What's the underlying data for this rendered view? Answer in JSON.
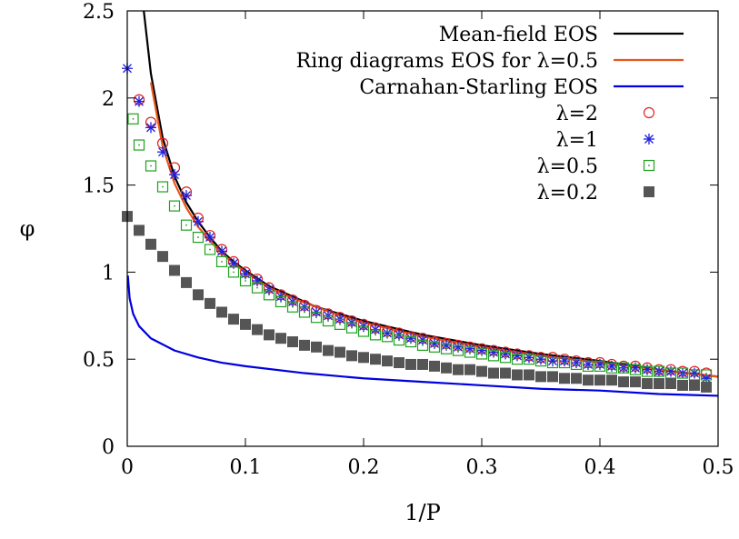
{
  "chart_data": {
    "type": "line",
    "title": "",
    "xlabel": "1/P",
    "ylabel": "φ",
    "xlim": [
      0,
      0.5
    ],
    "ylim": [
      0,
      2.5
    ],
    "grid": false,
    "legend_position": "top-right",
    "x_ticks": [
      "0",
      "0.1",
      "0.2",
      "0.3",
      "0.4",
      "0.5"
    ],
    "y_ticks": [
      "0",
      "0.5",
      "1",
      "1.5",
      "2",
      "2.5"
    ],
    "series": [
      {
        "name": "Mean-field EOS",
        "style": "line",
        "color": "#000000",
        "x": [
          0.014,
          0.02,
          0.03,
          0.04,
          0.05,
          0.06,
          0.07,
          0.08,
          0.09,
          0.1,
          0.12,
          0.14,
          0.16,
          0.18,
          0.2,
          0.25,
          0.3,
          0.35,
          0.4,
          0.45,
          0.5
        ],
        "y": [
          2.5,
          2.14,
          1.77,
          1.55,
          1.4,
          1.29,
          1.2,
          1.12,
          1.06,
          1.01,
          0.92,
          0.86,
          0.8,
          0.76,
          0.72,
          0.64,
          0.58,
          0.53,
          0.49,
          0.44,
          0.4
        ]
      },
      {
        "name": "Ring diagrams EOS for λ=0.5",
        "style": "line",
        "color": "#e8561d",
        "x": [
          0.02,
          0.03,
          0.04,
          0.05,
          0.06,
          0.07,
          0.08,
          0.09,
          0.1,
          0.12,
          0.14,
          0.16,
          0.18,
          0.2,
          0.25,
          0.3,
          0.35,
          0.4,
          0.45,
          0.5
        ],
        "y": [
          2.09,
          1.72,
          1.51,
          1.37,
          1.26,
          1.18,
          1.11,
          1.05,
          1.0,
          0.91,
          0.85,
          0.8,
          0.75,
          0.71,
          0.63,
          0.57,
          0.52,
          0.48,
          0.44,
          0.4
        ]
      },
      {
        "name": "Carnahan-Starling EOS",
        "style": "line",
        "color": "#0000e0",
        "x": [
          0.0005,
          0.002,
          0.005,
          0.01,
          0.02,
          0.04,
          0.06,
          0.08,
          0.1,
          0.15,
          0.2,
          0.25,
          0.3,
          0.35,
          0.4,
          0.45,
          0.5
        ],
        "y": [
          0.98,
          0.85,
          0.76,
          0.69,
          0.62,
          0.55,
          0.51,
          0.48,
          0.46,
          0.42,
          0.39,
          0.37,
          0.35,
          0.33,
          0.32,
          0.3,
          0.29
        ],
        "is_scatter": false
      },
      {
        "name": "λ=2",
        "style": "circle",
        "color": "#e02020",
        "x": [
          0.01,
          0.02,
          0.03,
          0.04,
          0.05,
          0.06,
          0.07,
          0.08,
          0.09,
          0.1,
          0.11,
          0.12,
          0.13,
          0.14,
          0.15,
          0.16,
          0.17,
          0.18,
          0.19,
          0.2,
          0.21,
          0.22,
          0.23,
          0.24,
          0.25,
          0.26,
          0.27,
          0.28,
          0.29,
          0.3,
          0.31,
          0.32,
          0.33,
          0.34,
          0.35,
          0.36,
          0.37,
          0.38,
          0.39,
          0.4,
          0.41,
          0.42,
          0.43,
          0.44,
          0.45,
          0.46,
          0.47,
          0.48,
          0.49
        ],
        "y": [
          1.99,
          1.86,
          1.74,
          1.6,
          1.46,
          1.31,
          1.21,
          1.13,
          1.06,
          1.0,
          0.96,
          0.91,
          0.87,
          0.84,
          0.81,
          0.78,
          0.76,
          0.74,
          0.72,
          0.7,
          0.68,
          0.66,
          0.65,
          0.63,
          0.62,
          0.6,
          0.59,
          0.58,
          0.57,
          0.56,
          0.55,
          0.54,
          0.53,
          0.52,
          0.51,
          0.51,
          0.5,
          0.49,
          0.48,
          0.48,
          0.47,
          0.46,
          0.46,
          0.45,
          0.44,
          0.44,
          0.43,
          0.43,
          0.42
        ]
      },
      {
        "name": "λ=1",
        "style": "star",
        "color": "#2020e0",
        "x": [
          0.0,
          0.01,
          0.02,
          0.03,
          0.04,
          0.05,
          0.06,
          0.07,
          0.08,
          0.09,
          0.1,
          0.11,
          0.12,
          0.13,
          0.14,
          0.15,
          0.16,
          0.17,
          0.18,
          0.19,
          0.2,
          0.21,
          0.22,
          0.23,
          0.24,
          0.25,
          0.26,
          0.27,
          0.28,
          0.29,
          0.3,
          0.31,
          0.32,
          0.33,
          0.34,
          0.35,
          0.36,
          0.37,
          0.38,
          0.39,
          0.4,
          0.41,
          0.42,
          0.43,
          0.44,
          0.45,
          0.46,
          0.47,
          0.48,
          0.49
        ],
        "y": [
          2.17,
          1.98,
          1.83,
          1.69,
          1.56,
          1.44,
          1.29,
          1.2,
          1.12,
          1.05,
          0.99,
          0.95,
          0.9,
          0.86,
          0.83,
          0.8,
          0.77,
          0.75,
          0.73,
          0.71,
          0.69,
          0.67,
          0.65,
          0.64,
          0.62,
          0.61,
          0.59,
          0.58,
          0.57,
          0.56,
          0.55,
          0.54,
          0.53,
          0.52,
          0.51,
          0.5,
          0.49,
          0.49,
          0.48,
          0.47,
          0.47,
          0.46,
          0.45,
          0.45,
          0.44,
          0.43,
          0.43,
          0.42,
          0.42,
          0.39
        ]
      },
      {
        "name": "λ=0.5",
        "style": "boxdot",
        "color": "#20a020",
        "x": [
          0.005,
          0.01,
          0.02,
          0.03,
          0.04,
          0.05,
          0.06,
          0.07,
          0.08,
          0.09,
          0.1,
          0.11,
          0.12,
          0.13,
          0.14,
          0.15,
          0.16,
          0.17,
          0.18,
          0.19,
          0.2,
          0.21,
          0.22,
          0.23,
          0.24,
          0.25,
          0.26,
          0.27,
          0.28,
          0.29,
          0.3,
          0.31,
          0.32,
          0.33,
          0.34,
          0.35,
          0.36,
          0.37,
          0.38,
          0.39,
          0.4,
          0.41,
          0.42,
          0.43,
          0.44,
          0.45,
          0.46,
          0.47,
          0.48,
          0.49
        ],
        "y": [
          1.88,
          1.73,
          1.61,
          1.49,
          1.38,
          1.27,
          1.2,
          1.13,
          1.06,
          1.0,
          0.95,
          0.91,
          0.87,
          0.83,
          0.8,
          0.77,
          0.74,
          0.72,
          0.7,
          0.68,
          0.66,
          0.64,
          0.63,
          0.61,
          0.6,
          0.58,
          0.57,
          0.56,
          0.55,
          0.54,
          0.53,
          0.52,
          0.51,
          0.5,
          0.5,
          0.49,
          0.48,
          0.48,
          0.47,
          0.46,
          0.46,
          0.45,
          0.45,
          0.44,
          0.43,
          0.43,
          0.42,
          0.42,
          0.41,
          0.41
        ]
      },
      {
        "name": "λ=0.2",
        "style": "filledsquare",
        "color": "#555555",
        "x": [
          0.0,
          0.01,
          0.02,
          0.03,
          0.04,
          0.05,
          0.06,
          0.07,
          0.08,
          0.09,
          0.1,
          0.11,
          0.12,
          0.13,
          0.14,
          0.15,
          0.16,
          0.17,
          0.18,
          0.19,
          0.2,
          0.21,
          0.22,
          0.23,
          0.24,
          0.25,
          0.26,
          0.27,
          0.28,
          0.29,
          0.3,
          0.31,
          0.32,
          0.33,
          0.34,
          0.35,
          0.36,
          0.37,
          0.38,
          0.39,
          0.4,
          0.41,
          0.42,
          0.43,
          0.44,
          0.45,
          0.46,
          0.47,
          0.48,
          0.49
        ],
        "y": [
          1.32,
          1.24,
          1.16,
          1.09,
          1.01,
          0.94,
          0.87,
          0.82,
          0.77,
          0.73,
          0.7,
          0.67,
          0.64,
          0.62,
          0.6,
          0.58,
          0.57,
          0.55,
          0.54,
          0.52,
          0.51,
          0.5,
          0.49,
          0.48,
          0.47,
          0.47,
          0.46,
          0.45,
          0.44,
          0.44,
          0.43,
          0.42,
          0.42,
          0.41,
          0.41,
          0.4,
          0.4,
          0.39,
          0.39,
          0.38,
          0.38,
          0.38,
          0.37,
          0.37,
          0.36,
          0.36,
          0.36,
          0.35,
          0.35,
          0.34
        ]
      }
    ]
  }
}
